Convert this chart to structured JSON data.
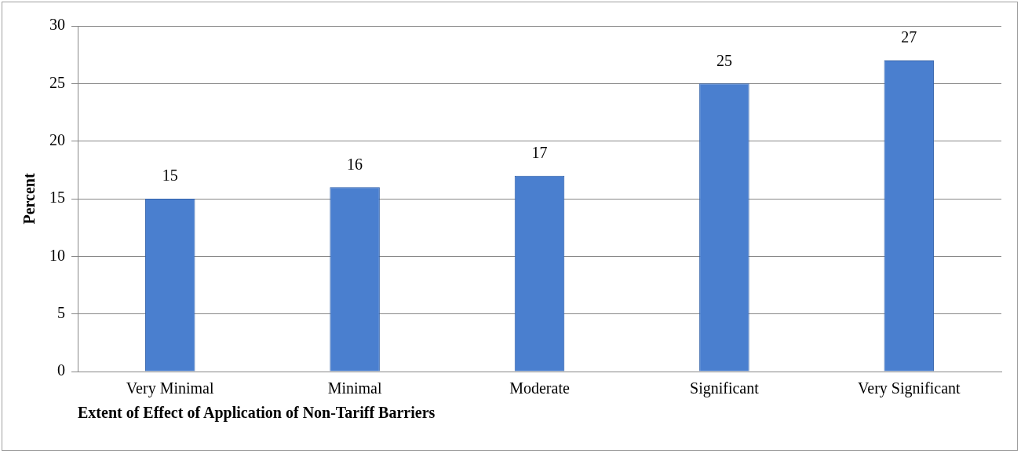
{
  "chart_data": {
    "type": "bar",
    "xlabel": "Extent of Effect of Application of Non-Tariff Barriers",
    "ylabel": "Percent",
    "categories": [
      "Very Minimal",
      "Minimal",
      "Moderate",
      "Significant",
      "Very Significant"
    ],
    "values": [
      15,
      16,
      17,
      25,
      27
    ],
    "color": "#4a7fcf",
    "ylim": [
      0,
      30
    ],
    "yticks": [
      0,
      5,
      10,
      15,
      20,
      25,
      30
    ],
    "grid": "y",
    "legend": false,
    "data_labels": true
  }
}
